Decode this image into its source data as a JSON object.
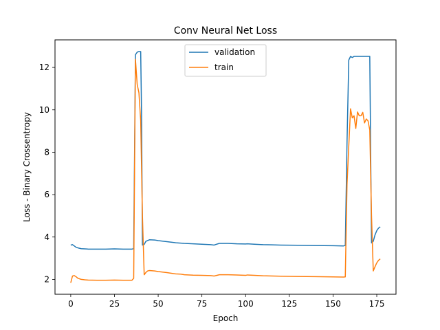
{
  "chart_data": {
    "type": "line",
    "title": "Conv Neural Net Loss",
    "xlabel": "Epoch",
    "ylabel": "Loss - Binary Crossentropy",
    "xlim": [
      -9,
      186
    ],
    "ylim": [
      1.3,
      13.3
    ],
    "xticks": [
      0,
      25,
      50,
      75,
      100,
      125,
      150,
      175
    ],
    "yticks": [
      2,
      4,
      6,
      8,
      10,
      12
    ],
    "grid": false,
    "legend_position": "top-center",
    "series": [
      {
        "name": "validation",
        "color": "#1f77b4",
        "points": [
          [
            0,
            3.62
          ],
          [
            1,
            3.64
          ],
          [
            2,
            3.58
          ],
          [
            3,
            3.52
          ],
          [
            4,
            3.49
          ],
          [
            5,
            3.47
          ],
          [
            6,
            3.45
          ],
          [
            8,
            3.44
          ],
          [
            10,
            3.43
          ],
          [
            15,
            3.43
          ],
          [
            20,
            3.43
          ],
          [
            25,
            3.44
          ],
          [
            30,
            3.43
          ],
          [
            35,
            3.43
          ],
          [
            36,
            3.45
          ],
          [
            37,
            12.6
          ],
          [
            38,
            12.72
          ],
          [
            39,
            12.75
          ],
          [
            40,
            12.75
          ],
          [
            40.5,
            9.8
          ],
          [
            41,
            3.62
          ],
          [
            42,
            3.65
          ],
          [
            43,
            3.8
          ],
          [
            45,
            3.87
          ],
          [
            48,
            3.86
          ],
          [
            50,
            3.83
          ],
          [
            55,
            3.78
          ],
          [
            60,
            3.73
          ],
          [
            65,
            3.7
          ],
          [
            70,
            3.68
          ],
          [
            75,
            3.66
          ],
          [
            80,
            3.64
          ],
          [
            82,
            3.62
          ],
          [
            83,
            3.65
          ],
          [
            85,
            3.7
          ],
          [
            90,
            3.7
          ],
          [
            95,
            3.68
          ],
          [
            100,
            3.67
          ],
          [
            101,
            3.68
          ],
          [
            105,
            3.66
          ],
          [
            110,
            3.64
          ],
          [
            115,
            3.63
          ],
          [
            120,
            3.62
          ],
          [
            130,
            3.61
          ],
          [
            140,
            3.6
          ],
          [
            150,
            3.59
          ],
          [
            156,
            3.58
          ],
          [
            157,
            3.6
          ],
          [
            158,
            8.5
          ],
          [
            159,
            12.35
          ],
          [
            160,
            12.52
          ],
          [
            161,
            12.47
          ],
          [
            162,
            12.52
          ],
          [
            165,
            12.52
          ],
          [
            170,
            12.52
          ],
          [
            171,
            12.52
          ],
          [
            172,
            3.72
          ],
          [
            173,
            3.8
          ],
          [
            174,
            4.1
          ],
          [
            175,
            4.3
          ],
          [
            176,
            4.42
          ],
          [
            177,
            4.48
          ]
        ]
      },
      {
        "name": "train",
        "color": "#ff7f0e",
        "points": [
          [
            0,
            1.84
          ],
          [
            1,
            2.16
          ],
          [
            2,
            2.18
          ],
          [
            3,
            2.13
          ],
          [
            4,
            2.06
          ],
          [
            5,
            2.03
          ],
          [
            6,
            2.0
          ],
          [
            8,
            1.98
          ],
          [
            10,
            1.97
          ],
          [
            15,
            1.96
          ],
          [
            20,
            1.96
          ],
          [
            25,
            1.97
          ],
          [
            30,
            1.96
          ],
          [
            35,
            1.96
          ],
          [
            36,
            2.05
          ],
          [
            37,
            12.38
          ],
          [
            38,
            11.2
          ],
          [
            39,
            10.8
          ],
          [
            40,
            9.5
          ],
          [
            41,
            5.0
          ],
          [
            42,
            2.22
          ],
          [
            43,
            2.33
          ],
          [
            44,
            2.4
          ],
          [
            45,
            2.42
          ],
          [
            48,
            2.4
          ],
          [
            50,
            2.37
          ],
          [
            55,
            2.32
          ],
          [
            60,
            2.26
          ],
          [
            63,
            2.25
          ],
          [
            65,
            2.22
          ],
          [
            70,
            2.2
          ],
          [
            75,
            2.19
          ],
          [
            80,
            2.18
          ],
          [
            82,
            2.16
          ],
          [
            83,
            2.18
          ],
          [
            85,
            2.22
          ],
          [
            90,
            2.22
          ],
          [
            95,
            2.21
          ],
          [
            100,
            2.19
          ],
          [
            101,
            2.21
          ],
          [
            105,
            2.19
          ],
          [
            110,
            2.17
          ],
          [
            120,
            2.15
          ],
          [
            130,
            2.14
          ],
          [
            140,
            2.13
          ],
          [
            150,
            2.12
          ],
          [
            156,
            2.11
          ],
          [
            157,
            2.12
          ],
          [
            158,
            6.5
          ],
          [
            159,
            8.3
          ],
          [
            160,
            10.05
          ],
          [
            161,
            9.62
          ],
          [
            162,
            9.72
          ],
          [
            163,
            9.12
          ],
          [
            164,
            9.9
          ],
          [
            165,
            9.72
          ],
          [
            166,
            9.72
          ],
          [
            167,
            9.88
          ],
          [
            168,
            9.38
          ],
          [
            169,
            9.57
          ],
          [
            170,
            9.48
          ],
          [
            171,
            9.05
          ],
          [
            172,
            5.0
          ],
          [
            173,
            2.4
          ],
          [
            174,
            2.6
          ],
          [
            175,
            2.78
          ],
          [
            176,
            2.9
          ],
          [
            177,
            2.97
          ]
        ]
      }
    ]
  }
}
